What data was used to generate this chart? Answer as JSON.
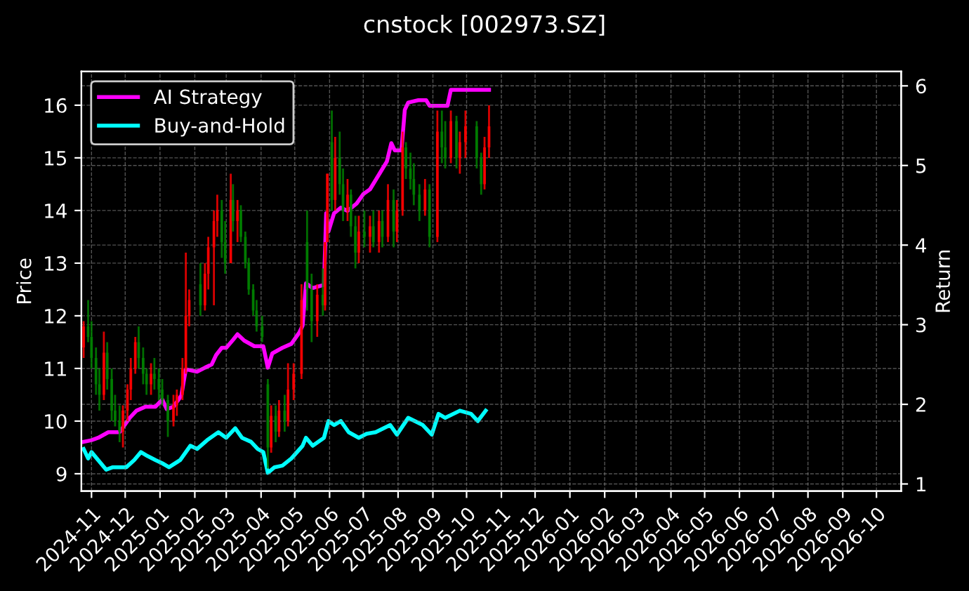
{
  "chart_data": {
    "type": "candlestick",
    "title": "cnstock [002973.SZ]",
    "ylabel": "Price",
    "y2label": "Return",
    "x": [
      "2024-10-25",
      "2024-10-29",
      "2024-11-01",
      "2024-11-05",
      "2024-11-08",
      "2024-11-12",
      "2024-11-15",
      "2024-11-19",
      "2024-11-22",
      "2024-11-26",
      "2024-11-29",
      "2024-12-03",
      "2024-12-06",
      "2024-12-10",
      "2024-12-13",
      "2024-12-17",
      "2024-12-20",
      "2024-12-24",
      "2024-12-27",
      "2024-12-31",
      "2025-01-03",
      "2025-01-08",
      "2025-01-13",
      "2025-01-16",
      "2025-01-21",
      "2025-01-24",
      "2025-01-27",
      "2025-02-06",
      "2025-02-10",
      "2025-02-13",
      "2025-02-18",
      "2025-02-21",
      "2025-02-25",
      "2025-02-28",
      "2025-03-05",
      "2025-03-07",
      "2025-03-11",
      "2025-03-14",
      "2025-03-18",
      "2025-03-21",
      "2025-03-25",
      "2025-03-28",
      "2025-04-02",
      "2025-04-07",
      "2025-04-10",
      "2025-04-14",
      "2025-04-17",
      "2025-04-22",
      "2025-04-25",
      "2025-04-30",
      "2025-05-07",
      "2025-05-12",
      "2025-05-16",
      "2025-05-21",
      "2025-05-26",
      "2025-05-28",
      "2025-05-30",
      "2025-06-03",
      "2025-06-06",
      "2025-06-10",
      "2025-06-13",
      "2025-06-17",
      "2025-06-20",
      "2025-06-24",
      "2025-06-27",
      "2025-07-02",
      "2025-07-07",
      "2025-07-10",
      "2025-07-15",
      "2025-07-18",
      "2025-07-23",
      "2025-07-28",
      "2025-07-31",
      "2025-08-05",
      "2025-08-08",
      "2025-08-12",
      "2025-08-15",
      "2025-08-20",
      "2025-08-25",
      "2025-08-29",
      "2025-09-05",
      "2025-09-09",
      "2025-09-12",
      "2025-09-17",
      "2025-09-22",
      "2025-09-25",
      "2025-09-30",
      "2025-10-10",
      "2025-10-14",
      "2025-10-17",
      "2025-10-21"
    ],
    "ohlc": [
      [
        11.4,
        11.9,
        11.2,
        11.8
      ],
      [
        11.8,
        12.3,
        11.5,
        11.6
      ],
      [
        11.6,
        11.9,
        11.0,
        11.2
      ],
      [
        11.2,
        11.4,
        10.5,
        10.7
      ],
      [
        10.7,
        11.0,
        10.2,
        10.5
      ],
      [
        10.5,
        11.7,
        10.4,
        11.3
      ],
      [
        11.3,
        11.5,
        10.6,
        10.8
      ],
      [
        10.8,
        11.0,
        10.0,
        10.2
      ],
      [
        10.2,
        10.5,
        9.9,
        10.0
      ],
      [
        10.0,
        10.3,
        9.6,
        9.8
      ],
      [
        9.8,
        10.3,
        9.5,
        10.2
      ],
      [
        10.2,
        10.7,
        10.0,
        10.6
      ],
      [
        10.6,
        11.2,
        10.4,
        11.0
      ],
      [
        11.0,
        11.6,
        10.9,
        11.5
      ],
      [
        11.5,
        11.8,
        11.0,
        11.2
      ],
      [
        11.2,
        11.4,
        10.7,
        10.9
      ],
      [
        10.9,
        11.0,
        10.5,
        10.7
      ],
      [
        10.7,
        11.1,
        10.5,
        10.9
      ],
      [
        10.9,
        11.2,
        10.6,
        10.8
      ],
      [
        10.8,
        11.0,
        10.4,
        10.6
      ],
      [
        10.6,
        10.8,
        10.3,
        10.4
      ],
      [
        10.4,
        10.5,
        9.7,
        10.0
      ],
      [
        10.0,
        10.5,
        9.9,
        10.3
      ],
      [
        10.3,
        10.6,
        10.1,
        10.5
      ],
      [
        10.5,
        11.2,
        10.4,
        11.0
      ],
      [
        11.0,
        13.2,
        10.9,
        12.0
      ],
      [
        12.0,
        12.5,
        11.8,
        12.3
      ],
      [
        12.6,
        13.0,
        12.0,
        12.2
      ],
      [
        12.2,
        13.0,
        12.1,
        12.8
      ],
      [
        12.8,
        13.5,
        12.5,
        13.3
      ],
      [
        13.3,
        14.0,
        12.2,
        13.8
      ],
      [
        13.8,
        14.3,
        13.5,
        14.0
      ],
      [
        14.0,
        14.2,
        13.1,
        13.4
      ],
      [
        13.4,
        13.8,
        12.8,
        13.0
      ],
      [
        13.0,
        14.7,
        13.0,
        14.2
      ],
      [
        14.2,
        14.5,
        13.6,
        13.8
      ],
      [
        13.8,
        14.2,
        13.4,
        14.0
      ],
      [
        14.0,
        14.1,
        13.4,
        13.5
      ],
      [
        13.5,
        13.6,
        12.9,
        13.0
      ],
      [
        13.0,
        13.1,
        12.4,
        12.5
      ],
      [
        12.5,
        12.6,
        12.0,
        12.1
      ],
      [
        12.1,
        12.3,
        11.7,
        11.8
      ],
      [
        11.8,
        12.0,
        11.5,
        11.6
      ],
      [
        10.7,
        10.8,
        9.1,
        9.5
      ],
      [
        9.5,
        10.3,
        9.4,
        10.1
      ],
      [
        10.1,
        10.3,
        9.6,
        9.8
      ],
      [
        9.8,
        10.4,
        9.7,
        10.2
      ],
      [
        10.2,
        10.5,
        9.8,
        10.0
      ],
      [
        10.0,
        11.1,
        9.9,
        10.6
      ],
      [
        10.6,
        11.1,
        10.4,
        10.9
      ],
      [
        10.9,
        12.6,
        10.8,
        12.3
      ],
      [
        13.4,
        14.0,
        12.1,
        12.5
      ],
      [
        12.5,
        12.8,
        11.5,
        11.9
      ],
      [
        11.9,
        12.6,
        11.6,
        12.4
      ],
      [
        12.4,
        12.9,
        12.0,
        12.2
      ],
      [
        12.2,
        13.4,
        12.1,
        13.4
      ],
      [
        13.4,
        14.7,
        13.4,
        14.7
      ],
      [
        15.3,
        15.9,
        14.0,
        14.2
      ],
      [
        14.2,
        15.4,
        14.0,
        15.0
      ],
      [
        15.0,
        15.5,
        14.3,
        14.5
      ],
      [
        14.5,
        14.8,
        13.8,
        14.0
      ],
      [
        14.0,
        14.6,
        13.8,
        14.3
      ],
      [
        14.3,
        14.4,
        13.5,
        13.7
      ],
      [
        13.7,
        13.9,
        12.9,
        13.2
      ],
      [
        13.2,
        13.9,
        13.0,
        13.6
      ],
      [
        13.6,
        14.0,
        13.3,
        13.5
      ],
      [
        13.5,
        13.9,
        13.2,
        13.7
      ],
      [
        13.7,
        14.0,
        13.3,
        13.4
      ],
      [
        13.4,
        14.0,
        13.2,
        13.8
      ],
      [
        13.8,
        14.0,
        13.3,
        13.5
      ],
      [
        13.5,
        14.5,
        13.4,
        14.2
      ],
      [
        14.2,
        14.4,
        13.3,
        13.6
      ],
      [
        13.6,
        14.2,
        13.4,
        14.0
      ],
      [
        14.0,
        15.5,
        13.9,
        15.2
      ],
      [
        15.2,
        15.3,
        14.6,
        14.8
      ],
      [
        14.8,
        15.1,
        14.4,
        14.6
      ],
      [
        14.6,
        14.9,
        14.1,
        14.3
      ],
      [
        14.3,
        14.5,
        13.8,
        14.0
      ],
      [
        14.0,
        14.6,
        13.9,
        14.4
      ],
      [
        14.4,
        14.5,
        13.3,
        13.5
      ],
      [
        13.5,
        15.9,
        13.4,
        15.5
      ],
      [
        15.5,
        15.9,
        14.9,
        15.2
      ],
      [
        15.2,
        15.7,
        14.8,
        15.0
      ],
      [
        15.0,
        15.9,
        14.9,
        15.7
      ],
      [
        15.7,
        15.8,
        14.8,
        15.0
      ],
      [
        15.0,
        15.5,
        14.7,
        15.3
      ],
      [
        15.3,
        15.9,
        15.0,
        15.6
      ],
      [
        15.6,
        15.7,
        14.8,
        15.0
      ],
      [
        15.0,
        15.1,
        14.3,
        14.5
      ],
      [
        14.5,
        15.4,
        14.4,
        15.2
      ],
      [
        15.2,
        16.0,
        15.0,
        15.6
      ]
    ],
    "colors": [
      "#ff0000",
      "#008000",
      "#008000",
      "#008000",
      "#008000",
      "#ff0000",
      "#008000",
      "#008000",
      "#008000",
      "#008000",
      "#ff0000",
      "#ff0000",
      "#ff0000",
      "#ff0000",
      "#008000",
      "#008000",
      "#008000",
      "#ff0000",
      "#008000",
      "#008000",
      "#008000",
      "#008000",
      "#ff0000",
      "#ff0000",
      "#ff0000",
      "#ff0000",
      "#ff0000",
      "#008000",
      "#ff0000",
      "#ff0000",
      "#ff0000",
      "#ff0000",
      "#008000",
      "#008000",
      "#ff0000",
      "#008000",
      "#ff0000",
      "#008000",
      "#008000",
      "#008000",
      "#008000",
      "#008000",
      "#008000",
      "#008000",
      "#ff0000",
      "#008000",
      "#ff0000",
      "#008000",
      "#ff0000",
      "#ff0000",
      "#ff0000",
      "#008000",
      "#008000",
      "#ff0000",
      "#008000",
      "#ff0000",
      "#ff0000",
      "#008000",
      "#ff0000",
      "#008000",
      "#008000",
      "#ff0000",
      "#008000",
      "#008000",
      "#ff0000",
      "#008000",
      "#ff0000",
      "#008000",
      "#ff0000",
      "#008000",
      "#ff0000",
      "#008000",
      "#ff0000",
      "#ff0000",
      "#008000",
      "#008000",
      "#008000",
      "#008000",
      "#ff0000",
      "#008000",
      "#ff0000",
      "#008000",
      "#008000",
      "#ff0000",
      "#008000",
      "#ff0000",
      "#ff0000",
      "#008000",
      "#008000",
      "#ff0000",
      "#ff0000"
    ],
    "series": [
      {
        "type": "line",
        "name": "AI Strategy",
        "color": "#ff00ff",
        "axis": "y2",
        "x": [
          "2024-10-25",
          "2024-11-01",
          "2024-11-07",
          "2024-11-16",
          "2024-11-26",
          "2024-12-05",
          "2024-12-11",
          "2024-12-19",
          "2024-12-28",
          "2025-01-03",
          "2025-01-07",
          "2025-01-13",
          "2025-01-20",
          "2025-01-24",
          "2025-02-03",
          "2025-02-10",
          "2025-02-16",
          "2025-02-20",
          "2025-02-25",
          "2025-03-01",
          "2025-03-07",
          "2025-03-11",
          "2025-03-17",
          "2025-03-26",
          "2025-04-03",
          "2025-04-07",
          "2025-04-11",
          "2025-04-20",
          "2025-04-28",
          "2025-05-05",
          "2025-05-08",
          "2025-05-11",
          "2025-05-17",
          "2025-05-27",
          "2025-05-29",
          "2025-05-31",
          "2025-06-05",
          "2025-06-11",
          "2025-06-17",
          "2025-06-25",
          "2025-07-01",
          "2025-07-07",
          "2025-07-16",
          "2025-07-22",
          "2025-07-26",
          "2025-07-29",
          "2025-08-04",
          "2025-08-07",
          "2025-08-10",
          "2025-08-19",
          "2025-08-26",
          "2025-08-29",
          "2025-09-14",
          "2025-09-17",
          "2025-10-21"
        ],
        "values": [
          1.53,
          1.55,
          1.58,
          1.65,
          1.65,
          1.83,
          1.92,
          1.97,
          1.97,
          2.06,
          1.94,
          1.97,
          2.11,
          2.44,
          2.41,
          2.46,
          2.5,
          2.62,
          2.71,
          2.71,
          2.81,
          2.88,
          2.8,
          2.73,
          2.73,
          2.46,
          2.64,
          2.71,
          2.76,
          2.9,
          2.99,
          3.52,
          3.46,
          3.5,
          4.4,
          4.17,
          4.4,
          4.47,
          4.43,
          4.52,
          4.64,
          4.7,
          4.91,
          5.05,
          5.28,
          5.19,
          5.19,
          5.7,
          5.79,
          5.82,
          5.82,
          5.75,
          5.75,
          5.95,
          5.95
        ]
      },
      {
        "type": "line",
        "name": "Buy-and-Hold",
        "color": "#00ffff",
        "axis": "y2",
        "x": [
          "2024-10-25",
          "2024-10-29",
          "2024-11-01",
          "2024-11-14",
          "2024-11-20",
          "2024-12-02",
          "2024-12-09",
          "2024-12-15",
          "2024-12-21",
          "2024-12-28",
          "2025-01-03",
          "2025-01-09",
          "2025-01-19",
          "2025-01-28",
          "2025-02-03",
          "2025-02-12",
          "2025-02-22",
          "2025-03-01",
          "2025-03-09",
          "2025-03-15",
          "2025-03-23",
          "2025-03-29",
          "2025-04-03",
          "2025-04-07",
          "2025-04-13",
          "2025-04-20",
          "2025-04-28",
          "2025-05-08",
          "2025-05-11",
          "2025-05-17",
          "2025-05-27",
          "2025-05-31",
          "2025-06-05",
          "2025-06-11",
          "2025-06-18",
          "2025-06-27",
          "2025-07-04",
          "2025-07-12",
          "2025-07-25",
          "2025-07-31",
          "2025-08-10",
          "2025-08-23",
          "2025-08-31",
          "2025-09-06",
          "2025-09-12",
          "2025-09-25",
          "2025-10-05",
          "2025-10-11",
          "2025-10-18"
        ],
        "values": [
          1.44,
          1.32,
          1.4,
          1.18,
          1.21,
          1.21,
          1.3,
          1.4,
          1.35,
          1.3,
          1.26,
          1.21,
          1.3,
          1.48,
          1.44,
          1.55,
          1.65,
          1.58,
          1.7,
          1.58,
          1.53,
          1.44,
          1.4,
          1.14,
          1.21,
          1.23,
          1.32,
          1.48,
          1.58,
          1.48,
          1.58,
          1.79,
          1.74,
          1.79,
          1.65,
          1.58,
          1.63,
          1.65,
          1.74,
          1.62,
          1.83,
          1.74,
          1.62,
          1.88,
          1.83,
          1.92,
          1.88,
          1.79,
          1.92
        ]
      }
    ],
    "xlim": [
      "2024-10-23",
      "2026-10-23"
    ],
    "xticks": [
      "2024-11",
      "2024-12",
      "2025-01",
      "2025-02",
      "2025-03",
      "2025-04",
      "2025-05",
      "2025-06",
      "2025-07",
      "2025-08",
      "2025-09",
      "2025-10",
      "2025-11",
      "2025-12",
      "2026-01",
      "2026-02",
      "2026-03",
      "2026-04",
      "2026-05",
      "2026-06",
      "2026-07",
      "2026-08",
      "2026-09",
      "2026-10"
    ],
    "ylim": [
      8.67,
      16.64
    ],
    "yticks": [
      9,
      10,
      11,
      12,
      13,
      14,
      15,
      16
    ],
    "y2lim": [
      0.91,
      6.18
    ],
    "y2ticks": [
      1,
      2,
      3,
      4,
      5,
      6
    ],
    "grid": true,
    "legend": "top left"
  }
}
